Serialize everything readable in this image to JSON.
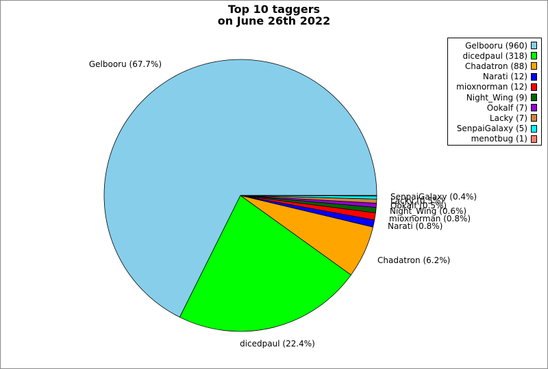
{
  "chart_data": {
    "type": "pie",
    "title_lines": [
      "Top 10 taggers",
      "on June 26th 2022"
    ],
    "slices": [
      {
        "label": "Gelbooru",
        "value": 960,
        "pct": "67.7%",
        "color": "#87ceeb"
      },
      {
        "label": "dicedpaul",
        "value": 318,
        "pct": "22.4%",
        "color": "#00ff00"
      },
      {
        "label": "Chadatron",
        "value": 88,
        "pct": "6.2%",
        "color": "#ffa500"
      },
      {
        "label": "Narati",
        "value": 12,
        "pct": "0.8%",
        "color": "#0000ff"
      },
      {
        "label": "mioxnorman",
        "value": 12,
        "pct": "0.8%",
        "color": "#ff0000"
      },
      {
        "label": "Night_Wing",
        "value": 9,
        "pct": "0.6%",
        "color": "#006400"
      },
      {
        "label": "Ookalf",
        "value": 7,
        "pct": "0.5%",
        "color": "#9400d3"
      },
      {
        "label": "Lacky",
        "value": 7,
        "pct": "0.5%",
        "color": "#cd853f"
      },
      {
        "label": "SenpaiGalaxy",
        "value": 5,
        "pct": "0.4%",
        "color": "#00ffff"
      },
      {
        "label": "menotbug",
        "value": 1,
        "pct": "0.1%",
        "color": "#fa8072"
      }
    ],
    "legend": {
      "placement": "top-right"
    }
  }
}
